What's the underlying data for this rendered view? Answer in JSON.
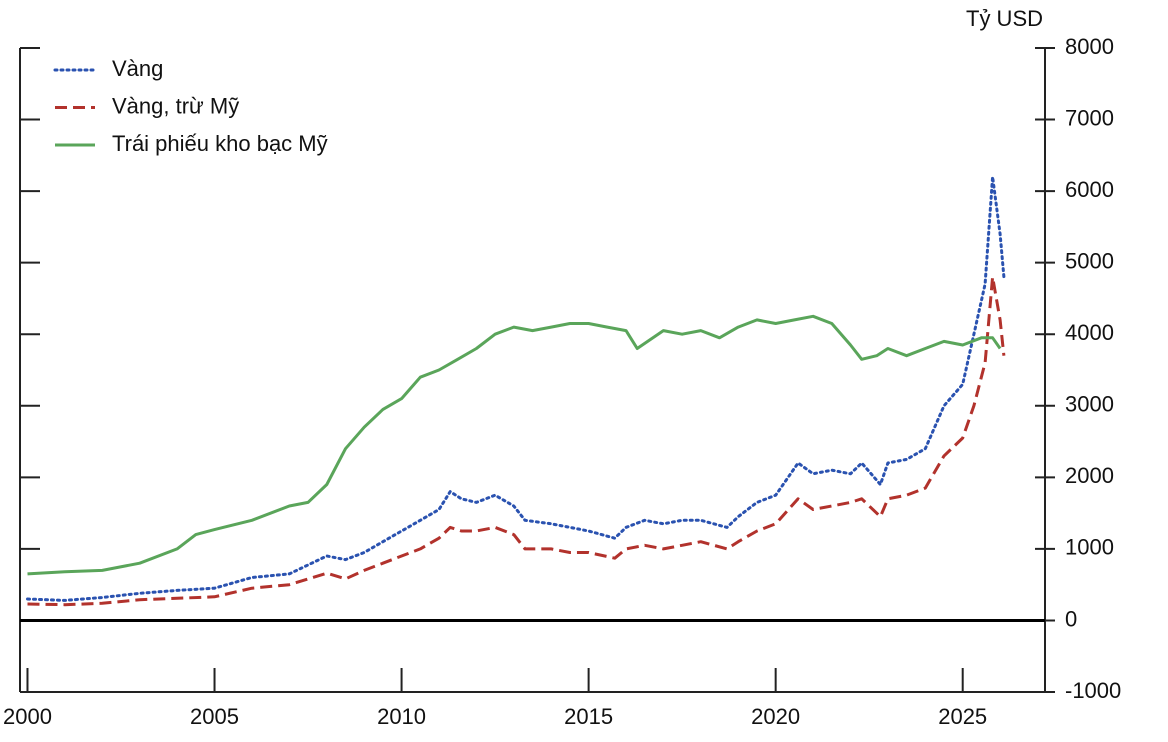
{
  "chart_data": {
    "type": "line",
    "y_label": "Tỷ USD",
    "xlim": [
      1999.8,
      2027.2
    ],
    "xticks": [
      2000,
      2005,
      2010,
      2015,
      2020,
      2025
    ],
    "ylim": [
      -1000,
      8000
    ],
    "yticks": [
      -1000,
      0,
      1000,
      2000,
      3000,
      4000,
      5000,
      6000,
      7000,
      8000
    ],
    "y_axis_side": "right",
    "legend": "top-left",
    "series": [
      {
        "name": "Vàng",
        "color": "#2a52b0",
        "style": "dotted",
        "x": [
          2000,
          2001,
          2002,
          2003,
          2004,
          2005,
          2006,
          2007,
          2008,
          2008.5,
          2009,
          2009.5,
          2010,
          2010.5,
          2011,
          2011.3,
          2011.6,
          2012,
          2012.5,
          2013,
          2013.3,
          2014,
          2014.5,
          2015,
          2015.7,
          2016,
          2016.5,
          2017,
          2017.5,
          2018,
          2018.7,
          2019,
          2019.5,
          2020,
          2020.6,
          2021,
          2021.5,
          2022,
          2022.3,
          2022.8,
          2023,
          2023.5,
          2024,
          2024.5,
          2025,
          2025.3,
          2025.6,
          2025.8,
          2026.0,
          2026.1
        ],
        "values": [
          300,
          280,
          320,
          380,
          420,
          450,
          600,
          650,
          900,
          850,
          950,
          1100,
          1250,
          1400,
          1550,
          1800,
          1700,
          1650,
          1750,
          1600,
          1400,
          1350,
          1300,
          1250,
          1150,
          1300,
          1400,
          1350,
          1400,
          1400,
          1300,
          1450,
          1650,
          1750,
          2200,
          2050,
          2100,
          2050,
          2200,
          1900,
          2200,
          2250,
          2400,
          3000,
          3300,
          4000,
          4700,
          6200,
          5400,
          4800
        ]
      },
      {
        "name": "Vàng, trừ Mỹ",
        "color": "#b2322c",
        "style": "dashed",
        "x": [
          2000,
          2001,
          2002,
          2003,
          2004,
          2005,
          2006,
          2007,
          2008,
          2008.5,
          2009,
          2009.5,
          2010,
          2010.5,
          2011,
          2011.3,
          2011.6,
          2012,
          2012.5,
          2013,
          2013.3,
          2014,
          2014.5,
          2015,
          2015.7,
          2016,
          2016.5,
          2017,
          2017.5,
          2018,
          2018.7,
          2019,
          2019.5,
          2020,
          2020.6,
          2021,
          2021.5,
          2022,
          2022.3,
          2022.8,
          2023,
          2023.5,
          2024,
          2024.5,
          2025,
          2025.3,
          2025.6,
          2025.8,
          2026.0,
          2026.1
        ],
        "values": [
          230,
          220,
          240,
          290,
          310,
          330,
          450,
          500,
          660,
          580,
          700,
          800,
          900,
          1000,
          1150,
          1300,
          1250,
          1250,
          1300,
          1200,
          1000,
          1000,
          950,
          950,
          870,
          1000,
          1050,
          1000,
          1050,
          1100,
          1000,
          1100,
          1250,
          1350,
          1700,
          1550,
          1600,
          1650,
          1700,
          1450,
          1700,
          1750,
          1850,
          2300,
          2550,
          3000,
          3600,
          4800,
          4200,
          3700
        ]
      },
      {
        "name": "Trái phiếu kho bạc Mỹ",
        "color": "#5aa55a",
        "style": "solid",
        "x": [
          2000,
          2001,
          2002,
          2003,
          2004,
          2004.5,
          2005,
          2006,
          2007,
          2007.5,
          2008,
          2008.5,
          2009,
          2009.5,
          2010,
          2010.5,
          2011,
          2011.5,
          2012,
          2012.5,
          2013,
          2013.5,
          2014,
          2014.5,
          2015,
          2015.5,
          2016,
          2016.3,
          2017,
          2017.5,
          2018,
          2018.5,
          2019,
          2019.5,
          2020,
          2020.5,
          2021,
          2021.5,
          2022,
          2022.3,
          2022.7,
          2023,
          2023.5,
          2024,
          2024.5,
          2025,
          2025.5,
          2025.8,
          2026
        ],
        "values": [
          650,
          680,
          700,
          800,
          1000,
          1200,
          1270,
          1400,
          1600,
          1650,
          1900,
          2400,
          2700,
          2950,
          3100,
          3400,
          3500,
          3650,
          3800,
          4000,
          4100,
          4050,
          4100,
          4150,
          4150,
          4100,
          4050,
          3800,
          4050,
          4000,
          4050,
          3950,
          4100,
          4200,
          4150,
          4200,
          4250,
          4150,
          3850,
          3650,
          3700,
          3800,
          3700,
          3800,
          3900,
          3850,
          3950,
          3950,
          3800
        ]
      }
    ]
  }
}
